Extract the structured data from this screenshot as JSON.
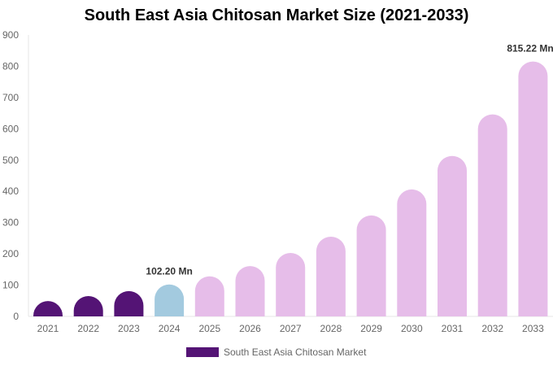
{
  "chart_data": {
    "type": "bar",
    "title": "South East Asia Chitosan Market Size (2021-2033)",
    "categories": [
      "2021",
      "2022",
      "2023",
      "2024",
      "2025",
      "2026",
      "2027",
      "2028",
      "2029",
      "2030",
      "2031",
      "2032",
      "2033"
    ],
    "series": [
      {
        "name": "South East Asia Chitosan Market",
        "values": [
          49,
          65,
          81,
          102.2,
          128,
          161,
          203,
          255,
          323,
          406,
          513,
          646,
          815.22
        ]
      }
    ],
    "data_labels": {
      "3": "102.20 Mn",
      "12": "815.22 Mn"
    },
    "bar_colors": {
      "historical": "#541475",
      "base": "#a3cadf",
      "forecast": "#e6bde9"
    },
    "ylim": [
      0,
      900
    ],
    "yticks": [
      0,
      100,
      200,
      300,
      400,
      500,
      600,
      700,
      800,
      900
    ],
    "grid": false,
    "legend": "bottom"
  }
}
